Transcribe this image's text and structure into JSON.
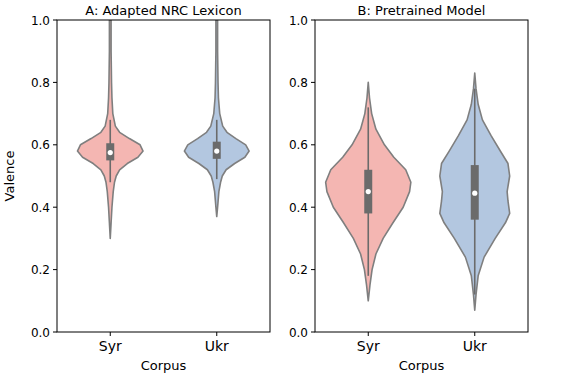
{
  "chart_data": [
    {
      "type": "violin",
      "title": "A: Adapted NRC Lexicon",
      "x_label": "Corpus",
      "y_label": "Valence",
      "categories": [
        "Syr",
        "Ukr"
      ],
      "ylim": [
        0,
        1
      ],
      "yticks": [
        {
          "value": 0,
          "label": "0.0"
        },
        {
          "value": 0.2,
          "label": "0.2"
        },
        {
          "value": 0.4,
          "label": "0.4"
        },
        {
          "value": 0.6,
          "label": "0.6"
        },
        {
          "value": 0.8,
          "label": "0.8"
        },
        {
          "value": 1,
          "label": "1.0"
        }
      ],
      "violins": [
        {
          "color": "#f4b6b2",
          "density_y": [
            0.3,
            0.35,
            0.4,
            0.45,
            0.48,
            0.5,
            0.52,
            0.54,
            0.56,
            0.58,
            0.6,
            0.62,
            0.64,
            0.66,
            0.7,
            0.75,
            0.8,
            0.9,
            1.0
          ],
          "density": [
            0,
            0.02,
            0.04,
            0.07,
            0.1,
            0.14,
            0.22,
            0.4,
            0.65,
            0.77,
            0.7,
            0.45,
            0.22,
            0.12,
            0.06,
            0.04,
            0.03,
            0.02,
            0.02
          ],
          "box": {
            "whisker_low": 0.48,
            "q1": 0.55,
            "median": 0.575,
            "q3": 0.605,
            "whisker_high": 0.68
          }
        },
        {
          "color": "#b3c7e0",
          "density_y": [
            0.37,
            0.4,
            0.45,
            0.48,
            0.5,
            0.52,
            0.54,
            0.56,
            0.58,
            0.6,
            0.62,
            0.64,
            0.66,
            0.7,
            0.75,
            0.8,
            0.9,
            1.0
          ],
          "density": [
            0,
            0.02,
            0.05,
            0.09,
            0.13,
            0.22,
            0.42,
            0.66,
            0.76,
            0.68,
            0.45,
            0.24,
            0.14,
            0.07,
            0.04,
            0.03,
            0.02,
            0.02
          ],
          "box": {
            "whisker_low": 0.49,
            "q1": 0.555,
            "median": 0.58,
            "q3": 0.61,
            "whisker_high": 0.68
          }
        }
      ]
    },
    {
      "type": "violin",
      "title": "B: Pretrained Model",
      "x_label": "Corpus",
      "categories": [
        "Syr",
        "Ukr"
      ],
      "ylim": [
        0,
        1
      ],
      "yticks": [
        {
          "value": 0,
          "label": "0.0"
        },
        {
          "value": 0.2,
          "label": "0.2"
        },
        {
          "value": 0.4,
          "label": "0.4"
        },
        {
          "value": 0.6,
          "label": "0.6"
        },
        {
          "value": 0.8,
          "label": "0.8"
        },
        {
          "value": 1,
          "label": "1.0"
        }
      ],
      "violins": [
        {
          "color": "#f4b6b2",
          "density_y": [
            0.1,
            0.15,
            0.2,
            0.25,
            0.3,
            0.35,
            0.4,
            0.45,
            0.48,
            0.52,
            0.56,
            0.6,
            0.65,
            0.7,
            0.75,
            0.8
          ],
          "density": [
            0,
            0.04,
            0.09,
            0.18,
            0.35,
            0.58,
            0.82,
            0.97,
            1.0,
            0.88,
            0.6,
            0.38,
            0.18,
            0.08,
            0.03,
            0
          ],
          "box": {
            "whisker_low": 0.18,
            "q1": 0.38,
            "median": 0.45,
            "q3": 0.52,
            "whisker_high": 0.72
          }
        },
        {
          "color": "#b3c7e0",
          "density_y": [
            0.07,
            0.12,
            0.18,
            0.24,
            0.3,
            0.35,
            0.38,
            0.42,
            0.45,
            0.5,
            0.54,
            0.58,
            0.63,
            0.68,
            0.73,
            0.78,
            0.83
          ],
          "density": [
            0,
            0.03,
            0.08,
            0.22,
            0.48,
            0.72,
            0.82,
            0.78,
            0.76,
            0.82,
            0.78,
            0.6,
            0.38,
            0.18,
            0.08,
            0.03,
            0
          ],
          "box": {
            "whisker_low": 0.12,
            "q1": 0.36,
            "median": 0.445,
            "q3": 0.535,
            "whisker_high": 0.78
          }
        }
      ]
    }
  ]
}
